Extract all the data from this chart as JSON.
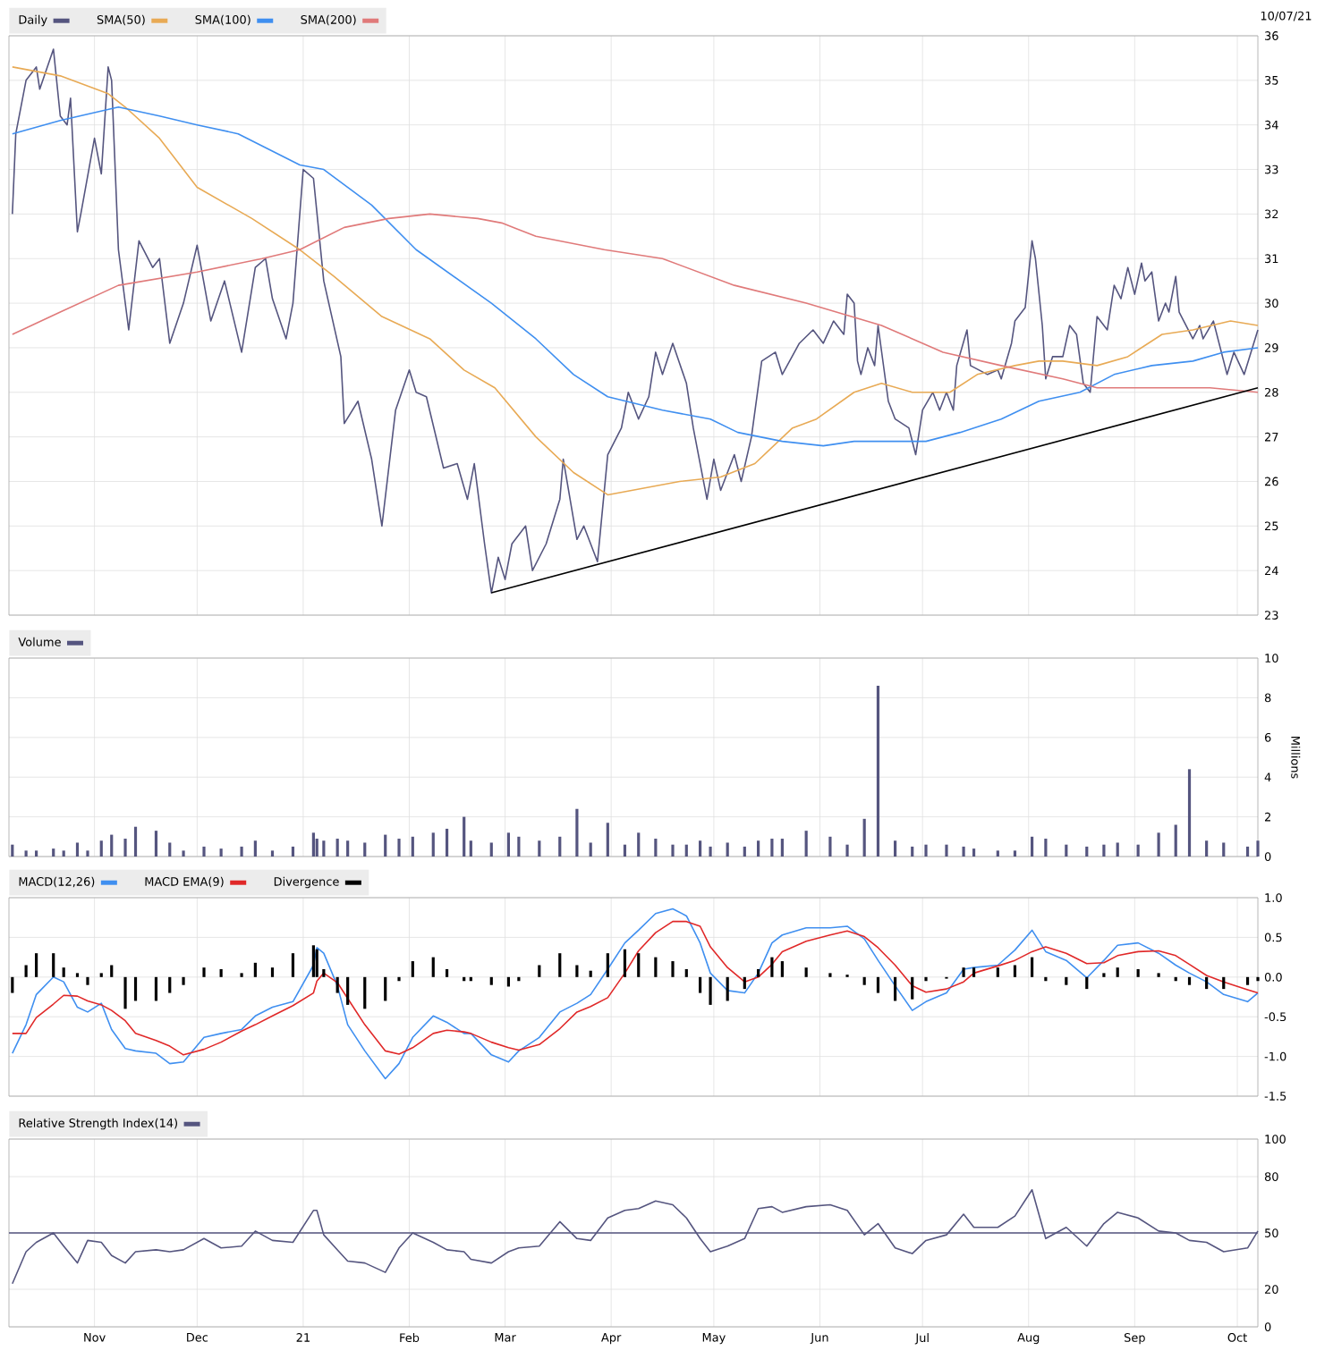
{
  "chart_data": [
    {
      "type": "line",
      "legend": "top",
      "grid": true,
      "tick_labels": "y",
      "annotations": [
        "10/07/21"
      ],
      "xlim": [
        "2020-10-07",
        "2021-10-07"
      ],
      "xticks": [
        {
          "value": "2020-11-01",
          "label": null
        },
        {
          "value": "2020-12-01",
          "label": null
        },
        {
          "value": "2021-01-01",
          "label": null
        },
        {
          "value": "2021-02-01",
          "label": null
        },
        {
          "value": "2021-03-01",
          "label": null
        },
        {
          "value": "2021-04-01",
          "label": null
        },
        {
          "value": "2021-05-01",
          "label": null
        },
        {
          "value": "2021-06-01",
          "label": null
        },
        {
          "value": "2021-07-01",
          "label": null
        },
        {
          "value": "2021-08-01",
          "label": null
        },
        {
          "value": "2021-09-01",
          "label": null
        },
        {
          "value": "2021-10-01",
          "label": null
        }
      ],
      "ylim": [
        23,
        36
      ],
      "yticks": [
        23,
        24,
        25,
        26,
        27,
        28,
        29,
        30,
        31,
        32,
        33,
        34,
        35,
        36
      ],
      "x": [
        "2020-10-08",
        "2020-10-09",
        "2020-10-12",
        "2020-10-15",
        "2020-10-16",
        "2020-10-20",
        "2020-10-22",
        "2020-10-24",
        "2020-10-25",
        "2020-10-27",
        "2020-10-28",
        "2020-11-01",
        "2020-11-03",
        "2020-11-05",
        "2020-11-06",
        "2020-11-08",
        "2020-11-11",
        "2020-11-14",
        "2020-11-18",
        "2020-11-20",
        "2020-11-23",
        "2020-11-27",
        "2020-12-01",
        "2020-12-05",
        "2020-12-09",
        "2020-12-14",
        "2020-12-18",
        "2020-12-21",
        "2020-12-23",
        "2020-12-27",
        "2020-12-29",
        "2021-01-01",
        "2021-01-04",
        "2021-01-07",
        "2021-01-12",
        "2021-01-13",
        "2021-01-17",
        "2021-01-21",
        "2021-01-24",
        "2021-01-28",
        "2021-02-01",
        "2021-02-03",
        "2021-02-06",
        "2021-02-11",
        "2021-02-15",
        "2021-02-18",
        "2021-02-20",
        "2021-02-23",
        "2021-02-25",
        "2021-02-27",
        "2021-03-01",
        "2021-03-03",
        "2021-03-07",
        "2021-03-09",
        "2021-03-13",
        "2021-03-17",
        "2021-03-18",
        "2021-03-22",
        "2021-03-24",
        "2021-03-28",
        "2021-03-31",
        "2021-04-04",
        "2021-04-06",
        "2021-04-09",
        "2021-04-12",
        "2021-04-14",
        "2021-04-16",
        "2021-04-19",
        "2021-04-23",
        "2021-04-25",
        "2021-04-29",
        "2021-05-01",
        "2021-05-03",
        "2021-05-07",
        "2021-05-09",
        "2021-05-12",
        "2021-05-15",
        "2021-05-19",
        "2021-05-21",
        "2021-05-26",
        "2021-05-30",
        "2021-06-02",
        "2021-06-05",
        "2021-06-08",
        "2021-06-09",
        "2021-06-11",
        "2021-06-12",
        "2021-06-13",
        "2021-06-15",
        "2021-06-17",
        "2021-06-18",
        "2021-06-21",
        "2021-06-23",
        "2021-06-27",
        "2021-06-29",
        "2021-07-01",
        "2021-07-04",
        "2021-07-06",
        "2021-07-08",
        "2021-07-10",
        "2021-07-11",
        "2021-07-14",
        "2021-07-15",
        "2021-07-20",
        "2021-07-23",
        "2021-07-24",
        "2021-07-27",
        "2021-07-28",
        "2021-07-31",
        "2021-08-02",
        "2021-08-03",
        "2021-08-05",
        "2021-08-06",
        "2021-08-08",
        "2021-08-11",
        "2021-08-13",
        "2021-08-15",
        "2021-08-17",
        "2021-08-19",
        "2021-08-21",
        "2021-08-24",
        "2021-08-26",
        "2021-08-28",
        "2021-08-30",
        "2021-09-01",
        "2021-09-03",
        "2021-09-04",
        "2021-09-06",
        "2021-09-08",
        "2021-09-10",
        "2021-09-11",
        "2021-09-13",
        "2021-09-14",
        "2021-09-18",
        "2021-09-20",
        "2021-09-21",
        "2021-09-24",
        "2021-09-28",
        "2021-09-30",
        "2021-10-03",
        "2021-10-07"
      ],
      "series": [
        {
          "name": "Daily",
          "color": "#55557f",
          "values": [
            32.0,
            33.8,
            35.0,
            35.3,
            34.8,
            35.7,
            34.2,
            34.0,
            34.6,
            31.6,
            32.0,
            33.7,
            32.9,
            35.3,
            35.0,
            31.2,
            29.4,
            31.4,
            30.8,
            31.0,
            29.1,
            30.0,
            31.3,
            29.6,
            30.5,
            28.9,
            30.8,
            31.0,
            30.1,
            29.2,
            30.0,
            33.0,
            32.8,
            30.5,
            28.8,
            27.3,
            27.8,
            26.5,
            25.0,
            27.6,
            28.5,
            28.0,
            27.9,
            26.3,
            26.4,
            25.6,
            26.4,
            24.6,
            23.5,
            24.3,
            23.8,
            24.6,
            25.0,
            24.0,
            24.6,
            25.6,
            26.5,
            24.7,
            25.0,
            24.2,
            26.6,
            27.2,
            28.0,
            27.4,
            27.9,
            28.9,
            28.4,
            29.1,
            28.2,
            27.2,
            25.6,
            26.5,
            25.8,
            26.6,
            26.0,
            27.0,
            28.7,
            28.9,
            28.4,
            29.1,
            29.4,
            29.1,
            29.6,
            29.3,
            30.2,
            30.0,
            28.7,
            28.4,
            29.0,
            28.6,
            29.5,
            27.8,
            27.4,
            27.2,
            26.6,
            27.6,
            28.0,
            27.6,
            28.0,
            27.6,
            28.6,
            29.4,
            28.6,
            28.4,
            28.5,
            28.3,
            29.1,
            29.6,
            29.9,
            31.4,
            31.0,
            29.5,
            28.3,
            28.8,
            28.8,
            29.5,
            29.3,
            28.2,
            28.0,
            29.7,
            29.4,
            30.4,
            30.1,
            30.8,
            30.2,
            30.9,
            30.5,
            30.7,
            29.6,
            30.0,
            29.8,
            30.6,
            29.8,
            29.2,
            29.5,
            29.2,
            29.6,
            28.4,
            28.9,
            28.4,
            29.4
          ]
        },
        {
          "name": "SMA(50)",
          "color": "#e8aa55",
          "x": [
            "2020-10-08",
            "2020-10-22",
            "2020-11-05",
            "2020-11-10",
            "2020-11-20",
            "2020-12-01",
            "2020-12-17",
            "2020-12-31",
            "2021-01-10",
            "2021-01-24",
            "2021-02-07",
            "2021-02-17",
            "2021-02-26",
            "2021-03-10",
            "2021-03-21",
            "2021-03-31",
            "2021-04-07",
            "2021-04-21",
            "2021-05-03",
            "2021-05-13",
            "2021-05-24",
            "2021-05-31",
            "2021-06-11",
            "2021-06-19",
            "2021-06-28",
            "2021-07-09",
            "2021-07-17",
            "2021-07-28",
            "2021-08-04",
            "2021-08-11",
            "2021-08-21",
            "2021-08-30",
            "2021-09-09",
            "2021-09-18",
            "2021-09-29",
            "2021-10-07"
          ],
          "values": [
            35.3,
            35.1,
            34.7,
            34.4,
            33.7,
            32.6,
            31.9,
            31.2,
            30.6,
            29.7,
            29.2,
            28.5,
            28.1,
            27.0,
            26.2,
            25.7,
            25.8,
            26.0,
            26.1,
            26.4,
            27.2,
            27.4,
            28.0,
            28.2,
            28.0,
            28.0,
            28.4,
            28.6,
            28.7,
            28.7,
            28.6,
            28.8,
            29.3,
            29.4,
            29.6,
            29.5
          ]
        },
        {
          "name": "SMA(100)",
          "color": "#3f8ff0",
          "x": [
            "2020-10-08",
            "2020-10-22",
            "2020-11-08",
            "2020-11-20",
            "2020-12-01",
            "2020-12-13",
            "2020-12-31",
            "2021-01-07",
            "2021-01-21",
            "2021-02-03",
            "2021-02-14",
            "2021-02-25",
            "2021-03-10",
            "2021-03-21",
            "2021-03-31",
            "2021-04-16",
            "2021-04-30",
            "2021-05-08",
            "2021-05-21",
            "2021-06-02",
            "2021-06-11",
            "2021-06-21",
            "2021-07-02",
            "2021-07-12",
            "2021-07-24",
            "2021-08-04",
            "2021-08-16",
            "2021-08-26",
            "2021-09-06",
            "2021-09-18",
            "2021-09-27",
            "2021-10-07"
          ],
          "values": [
            33.8,
            34.1,
            34.4,
            34.2,
            34.0,
            33.8,
            33.1,
            33.0,
            32.2,
            31.2,
            30.6,
            30.0,
            29.2,
            28.4,
            27.9,
            27.6,
            27.4,
            27.1,
            26.9,
            26.8,
            26.9,
            26.9,
            26.9,
            27.1,
            27.4,
            27.8,
            28.0,
            28.4,
            28.6,
            28.7,
            28.9,
            29.0
          ]
        },
        {
          "name": "SMA(200)",
          "color": "#e07a7a",
          "x": [
            "2020-10-08",
            "2020-10-22",
            "2020-11-08",
            "2020-12-01",
            "2020-12-20",
            "2020-12-31",
            "2021-01-13",
            "2021-01-26",
            "2021-02-07",
            "2021-02-21",
            "2021-02-28",
            "2021-03-10",
            "2021-03-30",
            "2021-04-16",
            "2021-05-07",
            "2021-05-28",
            "2021-06-19",
            "2021-07-07",
            "2021-07-24",
            "2021-08-11",
            "2021-08-21",
            "2021-09-06",
            "2021-09-23",
            "2021-10-07"
          ],
          "values": [
            29.3,
            29.8,
            30.4,
            30.7,
            31.0,
            31.2,
            31.7,
            31.9,
            32.0,
            31.9,
            31.8,
            31.5,
            31.2,
            31.0,
            30.4,
            30.0,
            29.5,
            28.9,
            28.6,
            28.3,
            28.1,
            28.1,
            28.1,
            28.0
          ]
        },
        {
          "color": "#000000",
          "x": [
            "2021-02-25",
            "2021-10-07"
          ],
          "values": [
            23.5,
            28.1
          ]
        }
      ]
    },
    {
      "type": "bar",
      "legend": "top",
      "grid": true,
      "tick_labels": "y",
      "ylabel": "Millions",
      "xlim": [
        "2020-10-07",
        "2021-10-07"
      ],
      "xticks": [
        {
          "value": "2020-11-01",
          "label": null
        },
        {
          "value": "2020-12-01",
          "label": null
        },
        {
          "value": "2021-01-01",
          "label": null
        },
        {
          "value": "2021-02-01",
          "label": null
        },
        {
          "value": "2021-03-01",
          "label": null
        },
        {
          "value": "2021-04-01",
          "label": null
        },
        {
          "value": "2021-05-01",
          "label": null
        },
        {
          "value": "2021-06-01",
          "label": null
        },
        {
          "value": "2021-07-01",
          "label": null
        },
        {
          "value": "2021-08-01",
          "label": null
        },
        {
          "value": "2021-09-01",
          "label": null
        },
        {
          "value": "2021-10-01",
          "label": null
        }
      ],
      "ylim": [
        0,
        10
      ],
      "yticks": [
        0,
        2,
        4,
        6,
        8,
        10
      ],
      "x": [
        "2020-10-08",
        "2020-10-12",
        "2020-10-15",
        "2020-10-20",
        "2020-10-23",
        "2020-10-27",
        "2020-10-30",
        "2020-11-03",
        "2020-11-06",
        "2020-11-10",
        "2020-11-13",
        "2020-11-19",
        "2020-11-23",
        "2020-11-27",
        "2020-12-03",
        "2020-12-08",
        "2020-12-14",
        "2020-12-18",
        "2020-12-23",
        "2020-12-29",
        "2021-01-04",
        "2021-01-05",
        "2021-01-07",
        "2021-01-11",
        "2021-01-14",
        "2021-01-19",
        "2021-01-25",
        "2021-01-29",
        "2021-02-02",
        "2021-02-08",
        "2021-02-12",
        "2021-02-17",
        "2021-02-19",
        "2021-02-25",
        "2021-03-02",
        "2021-03-05",
        "2021-03-11",
        "2021-03-17",
        "2021-03-22",
        "2021-03-26",
        "2021-03-31",
        "2021-04-05",
        "2021-04-09",
        "2021-04-14",
        "2021-04-19",
        "2021-04-23",
        "2021-04-27",
        "2021-04-30",
        "2021-05-05",
        "2021-05-10",
        "2021-05-14",
        "2021-05-18",
        "2021-05-21",
        "2021-05-28",
        "2021-06-04",
        "2021-06-09",
        "2021-06-14",
        "2021-06-18",
        "2021-06-23",
        "2021-06-28",
        "2021-07-02",
        "2021-07-08",
        "2021-07-13",
        "2021-07-16",
        "2021-07-23",
        "2021-07-28",
        "2021-08-02",
        "2021-08-06",
        "2021-08-12",
        "2021-08-18",
        "2021-08-23",
        "2021-08-27",
        "2021-09-02",
        "2021-09-08",
        "2021-09-13",
        "2021-09-17",
        "2021-09-22",
        "2021-09-27",
        "2021-10-04",
        "2021-10-07"
      ],
      "series": [
        {
          "name": "Volume",
          "color": "#55557f",
          "values": [
            0.6,
            0.3,
            0.3,
            0.4,
            0.3,
            0.7,
            0.3,
            0.8,
            1.1,
            0.9,
            1.5,
            1.3,
            0.7,
            0.3,
            0.5,
            0.4,
            0.5,
            0.8,
            0.3,
            0.5,
            1.2,
            0.9,
            0.8,
            0.9,
            0.8,
            0.7,
            1.1,
            0.9,
            1.0,
            1.2,
            1.4,
            2.0,
            0.8,
            0.7,
            1.2,
            1.0,
            0.8,
            1.0,
            2.4,
            0.7,
            1.7,
            0.6,
            1.2,
            0.9,
            0.6,
            0.6,
            0.8,
            0.5,
            0.7,
            0.5,
            0.8,
            0.9,
            0.9,
            1.3,
            1.0,
            0.6,
            1.9,
            8.6,
            0.8,
            0.5,
            0.6,
            0.6,
            0.5,
            0.4,
            0.3,
            0.3,
            1.0,
            0.9,
            0.6,
            0.5,
            0.6,
            0.7,
            0.6,
            1.2,
            1.6,
            4.4,
            0.8,
            0.7,
            0.5,
            0.8
          ]
        }
      ]
    },
    {
      "type": "line",
      "legend": "top",
      "grid": true,
      "tick_labels": "y",
      "xlim": [
        "2020-10-07",
        "2021-10-07"
      ],
      "xticks": [
        {
          "value": "2020-11-01",
          "label": null
        },
        {
          "value": "2020-12-01",
          "label": null
        },
        {
          "value": "2021-01-01",
          "label": null
        },
        {
          "value": "2021-02-01",
          "label": null
        },
        {
          "value": "2021-03-01",
          "label": null
        },
        {
          "value": "2021-04-01",
          "label": null
        },
        {
          "value": "2021-05-01",
          "label": null
        },
        {
          "value": "2021-06-01",
          "label": null
        },
        {
          "value": "2021-07-01",
          "label": null
        },
        {
          "value": "2021-08-01",
          "label": null
        },
        {
          "value": "2021-09-01",
          "label": null
        },
        {
          "value": "2021-10-01",
          "label": null
        }
      ],
      "ylim": [
        -1.5,
        1.0
      ],
      "yticks": [
        {
          "value": -1.5,
          "label": "-1.5"
        },
        {
          "value": -1.0,
          "label": "-1.0"
        },
        {
          "value": -0.5,
          "label": "-0.5"
        },
        {
          "value": 0.0,
          "label": "0.0"
        },
        {
          "value": 0.5,
          "label": "0.5"
        },
        {
          "value": 1.0,
          "label": "1.0"
        }
      ],
      "x": [
        "2020-10-08",
        "2020-10-12",
        "2020-10-15",
        "2020-10-20",
        "2020-10-23",
        "2020-10-27",
        "2020-10-30",
        "2020-11-03",
        "2020-11-06",
        "2020-11-10",
        "2020-11-13",
        "2020-11-19",
        "2020-11-23",
        "2020-11-27",
        "2020-12-03",
        "2020-12-08",
        "2020-12-14",
        "2020-12-18",
        "2020-12-23",
        "2020-12-29",
        "2021-01-04",
        "2021-01-05",
        "2021-01-07",
        "2021-01-11",
        "2021-01-14",
        "2021-01-19",
        "2021-01-25",
        "2021-01-29",
        "2021-02-02",
        "2021-02-08",
        "2021-02-12",
        "2021-02-17",
        "2021-02-19",
        "2021-02-25",
        "2021-03-02",
        "2021-03-05",
        "2021-03-11",
        "2021-03-17",
        "2021-03-22",
        "2021-03-26",
        "2021-03-31",
        "2021-04-05",
        "2021-04-09",
        "2021-04-14",
        "2021-04-19",
        "2021-04-23",
        "2021-04-27",
        "2021-04-30",
        "2021-05-05",
        "2021-05-10",
        "2021-05-14",
        "2021-05-18",
        "2021-05-21",
        "2021-05-28",
        "2021-06-04",
        "2021-06-09",
        "2021-06-14",
        "2021-06-18",
        "2021-06-23",
        "2021-06-28",
        "2021-07-02",
        "2021-07-08",
        "2021-07-13",
        "2021-07-16",
        "2021-07-23",
        "2021-07-28",
        "2021-08-02",
        "2021-08-06",
        "2021-08-12",
        "2021-08-18",
        "2021-08-23",
        "2021-08-27",
        "2021-09-02",
        "2021-09-08",
        "2021-09-13",
        "2021-09-17",
        "2021-09-22",
        "2021-09-27",
        "2021-10-04",
        "2021-10-07"
      ],
      "series": [
        {
          "name": "MACD(12,26)",
          "color": "#3f8ff0",
          "values": [
            -0.96,
            -0.6,
            -0.22,
            0.0,
            -0.06,
            -0.38,
            -0.44,
            -0.33,
            -0.66,
            -0.9,
            -0.93,
            -0.96,
            -1.09,
            -1.07,
            -0.76,
            -0.71,
            -0.66,
            -0.49,
            -0.38,
            -0.31,
            0.15,
            0.37,
            0.3,
            -0.11,
            -0.6,
            -0.93,
            -1.28,
            -1.09,
            -0.76,
            -0.49,
            -0.57,
            -0.71,
            -0.71,
            -0.98,
            -1.07,
            -0.93,
            -0.76,
            -0.44,
            -0.33,
            -0.22,
            0.1,
            0.43,
            0.59,
            0.8,
            0.86,
            0.77,
            0.43,
            0.05,
            -0.17,
            -0.2,
            0.05,
            0.43,
            0.53,
            0.62,
            0.62,
            0.64,
            0.48,
            0.21,
            -0.11,
            -0.42,
            -0.31,
            -0.2,
            0.1,
            0.12,
            0.15,
            0.34,
            0.59,
            0.32,
            0.21,
            -0.01,
            0.21,
            0.4,
            0.43,
            0.3,
            0.15,
            0.05,
            -0.06,
            -0.22,
            -0.31,
            -0.2
          ]
        },
        {
          "name": "MACD EMA(9)",
          "color": "#e02828",
          "values": [
            -0.71,
            -0.71,
            -0.51,
            -0.34,
            -0.23,
            -0.24,
            -0.3,
            -0.35,
            -0.42,
            -0.55,
            -0.71,
            -0.8,
            -0.87,
            -0.98,
            -0.91,
            -0.82,
            -0.68,
            -0.6,
            -0.49,
            -0.36,
            -0.2,
            -0.05,
            0.05,
            -0.07,
            -0.27,
            -0.6,
            -0.93,
            -0.97,
            -0.89,
            -0.71,
            -0.67,
            -0.69,
            -0.71,
            -0.82,
            -0.89,
            -0.92,
            -0.85,
            -0.65,
            -0.44,
            -0.37,
            -0.26,
            0.05,
            0.33,
            0.56,
            0.7,
            0.7,
            0.64,
            0.38,
            0.12,
            -0.06,
            0.0,
            0.16,
            0.32,
            0.45,
            0.53,
            0.58,
            0.51,
            0.37,
            0.15,
            -0.11,
            -0.19,
            -0.15,
            -0.06,
            0.05,
            0.14,
            0.21,
            0.32,
            0.38,
            0.3,
            0.17,
            0.18,
            0.27,
            0.32,
            0.33,
            0.27,
            0.16,
            0.02,
            -0.06,
            -0.16,
            -0.2
          ]
        },
        {
          "name": "Divergence",
          "type": "bar",
          "color": "#000000",
          "values": [
            -0.2,
            0.15,
            0.3,
            0.3,
            0.12,
            0.05,
            -0.1,
            0.05,
            0.15,
            -0.4,
            -0.3,
            -0.3,
            -0.2,
            -0.1,
            0.12,
            0.1,
            0.05,
            0.18,
            0.12,
            0.3,
            0.4,
            0.35,
            0.1,
            -0.2,
            -0.35,
            -0.4,
            -0.3,
            -0.05,
            0.2,
            0.25,
            0.1,
            -0.05,
            -0.05,
            -0.1,
            -0.12,
            -0.05,
            0.15,
            0.3,
            0.15,
            0.08,
            0.3,
            0.35,
            0.3,
            0.25,
            0.2,
            0.1,
            -0.2,
            -0.35,
            -0.3,
            -0.15,
            0.1,
            0.25,
            0.2,
            0.12,
            0.05,
            0.03,
            -0.1,
            -0.2,
            -0.3,
            -0.28,
            -0.05,
            -0.02,
            0.12,
            0.12,
            0.12,
            0.15,
            0.25,
            -0.05,
            -0.1,
            -0.15,
            0.05,
            0.12,
            0.1,
            0.05,
            -0.05,
            -0.1,
            -0.15,
            -0.15,
            -0.1,
            -0.05
          ]
        }
      ]
    },
    {
      "type": "line",
      "legend": "top",
      "grid": true,
      "xlim": [
        "2020-10-07",
        "2021-10-07"
      ],
      "xticks": [
        {
          "value": "2020-11-01",
          "label": "Nov"
        },
        {
          "value": "2020-12-01",
          "label": "Dec"
        },
        {
          "value": "2021-01-01",
          "label": "21"
        },
        {
          "value": "2021-02-01",
          "label": "Feb"
        },
        {
          "value": "2021-03-01",
          "label": "Mar"
        },
        {
          "value": "2021-04-01",
          "label": "Apr"
        },
        {
          "value": "2021-05-01",
          "label": "May"
        },
        {
          "value": "2021-06-01",
          "label": "Jun"
        },
        {
          "value": "2021-07-01",
          "label": "Jul"
        },
        {
          "value": "2021-08-01",
          "label": "Aug"
        },
        {
          "value": "2021-09-01",
          "label": "Sep"
        },
        {
          "value": "2021-10-01",
          "label": "Oct"
        }
      ],
      "ylim": [
        0,
        100
      ],
      "yticks": [
        0,
        20,
        50,
        80,
        100
      ],
      "ref_lines": [
        {
          "axis": "y",
          "value": 50,
          "color": "#55557f"
        }
      ],
      "x": [
        "2020-10-08",
        "2020-10-12",
        "2020-10-15",
        "2020-10-20",
        "2020-10-23",
        "2020-10-27",
        "2020-10-30",
        "2020-11-03",
        "2020-11-06",
        "2020-11-10",
        "2020-11-13",
        "2020-11-19",
        "2020-11-23",
        "2020-11-27",
        "2020-12-03",
        "2020-12-08",
        "2020-12-14",
        "2020-12-18",
        "2020-12-23",
        "2020-12-29",
        "2021-01-04",
        "2021-01-05",
        "2021-01-07",
        "2021-01-11",
        "2021-01-14",
        "2021-01-19",
        "2021-01-25",
        "2021-01-29",
        "2021-02-02",
        "2021-02-08",
        "2021-02-12",
        "2021-02-17",
        "2021-02-19",
        "2021-02-25",
        "2021-03-02",
        "2021-03-05",
        "2021-03-11",
        "2021-03-17",
        "2021-03-22",
        "2021-03-26",
        "2021-03-31",
        "2021-04-05",
        "2021-04-09",
        "2021-04-14",
        "2021-04-19",
        "2021-04-23",
        "2021-04-27",
        "2021-04-30",
        "2021-05-05",
        "2021-05-10",
        "2021-05-14",
        "2021-05-18",
        "2021-05-21",
        "2021-05-28",
        "2021-06-04",
        "2021-06-09",
        "2021-06-14",
        "2021-06-18",
        "2021-06-23",
        "2021-06-28",
        "2021-07-02",
        "2021-07-08",
        "2021-07-13",
        "2021-07-16",
        "2021-07-23",
        "2021-07-28",
        "2021-08-02",
        "2021-08-06",
        "2021-08-12",
        "2021-08-18",
        "2021-08-23",
        "2021-08-27",
        "2021-09-02",
        "2021-09-08",
        "2021-09-13",
        "2021-09-17",
        "2021-09-22",
        "2021-09-27",
        "2021-10-04",
        "2021-10-07"
      ],
      "series": [
        {
          "name": "Relative Strength Index(14)",
          "color": "#55557f",
          "values": [
            23,
            40,
            45,
            50,
            43,
            34,
            46,
            45,
            38,
            34,
            40,
            41,
            40,
            41,
            47,
            42,
            43,
            51,
            46,
            45,
            62,
            62,
            49,
            41,
            35,
            34,
            29,
            42,
            50,
            45,
            41,
            40,
            36,
            34,
            40,
            42,
            43,
            56,
            47,
            46,
            58,
            62,
            63,
            67,
            65,
            58,
            47,
            40,
            43,
            47,
            63,
            64,
            61,
            64,
            65,
            62,
            49,
            55,
            42,
            39,
            46,
            49,
            60,
            53,
            53,
            59,
            73,
            47,
            53,
            43,
            55,
            61,
            58,
            51,
            50,
            46,
            45,
            40,
            42,
            51
          ]
        }
      ]
    }
  ]
}
